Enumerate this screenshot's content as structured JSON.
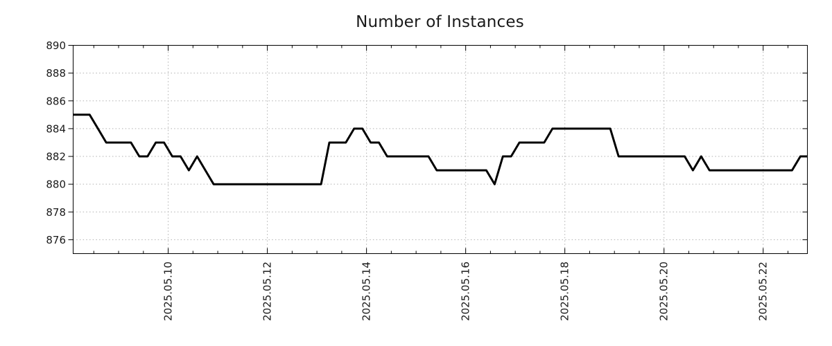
{
  "chart_data": {
    "type": "line",
    "title": "Number of Instances",
    "xlabel": "",
    "ylabel": "",
    "legend": "none",
    "grid": {
      "show": true,
      "style": "dotted",
      "color": "#b0b0b0"
    },
    "colors": {
      "frame": "#000000",
      "text": "#1a1a1a",
      "background": "#ffffff"
    },
    "x_axis": {
      "time_origin": "2025-05-08 00:00",
      "xlim_hours": [
        2,
        357.4
      ],
      "tick_labels": [
        "2025.05.10",
        "2025.05.12",
        "2025.05.14",
        "2025.05.16",
        "2025.05.18",
        "2025.05.20",
        "2025.05.22"
      ],
      "first_major_offset_hours": 48,
      "major_step_hours": 48,
      "minor_step_hours": 12
    },
    "y_axis": {
      "ticks": [
        876,
        878,
        880,
        882,
        884,
        886,
        888,
        890
      ],
      "tick_labels": [
        "876",
        "878",
        "880",
        "882",
        "884",
        "886",
        "888",
        "890"
      ],
      "ylim": [
        875,
        890
      ]
    },
    "series": [
      {
        "name": "Number of Instances",
        "color": "#000000",
        "line_width": 3,
        "x_start": "2025-05-08 02:00",
        "x_step_hours": 4,
        "values": [
          885,
          885,
          885,
          884,
          883,
          883,
          883,
          883,
          882,
          882,
          883,
          883,
          882,
          882,
          881,
          882,
          881,
          880,
          880,
          880,
          880,
          880,
          880,
          880,
          880,
          880,
          880,
          880,
          880,
          880,
          880,
          883,
          883,
          883,
          884,
          884,
          883,
          883,
          882,
          882,
          882,
          882,
          882,
          882,
          881,
          881,
          881,
          881,
          881,
          881,
          881,
          880,
          882,
          882,
          883,
          883,
          883,
          883,
          884,
          884,
          884,
          884,
          884,
          884,
          884,
          884,
          882,
          882,
          882,
          882,
          882,
          882,
          882,
          882,
          882,
          881,
          882,
          881,
          881,
          881,
          881,
          881,
          881,
          881,
          881,
          881,
          881,
          881,
          882,
          882
        ]
      }
    ]
  }
}
